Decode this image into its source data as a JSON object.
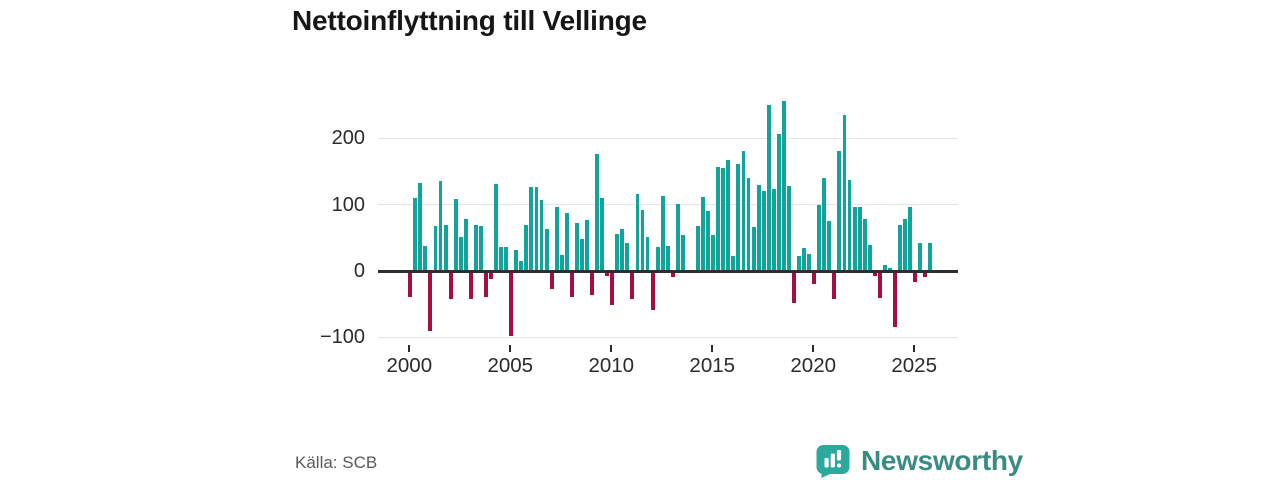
{
  "title": "Nettoinflyttning till Vellinge",
  "source": "Källa: SCB",
  "brand": {
    "name": "Newsworthy"
  },
  "chart_data": {
    "type": "bar",
    "title": "Nettoinflyttning till Vellinge",
    "xlabel": "",
    "ylabel": "",
    "frequency": "quarterly",
    "start_year": 2000,
    "values": [
      -38,
      110,
      132,
      37,
      -88,
      68,
      135,
      69,
      -40,
      108,
      51,
      78,
      -40,
      70,
      68,
      -37,
      -10,
      131,
      36,
      36,
      -97,
      31,
      15,
      69,
      126,
      127,
      107,
      64,
      -26,
      96,
      24,
      87,
      -38,
      73,
      49,
      77,
      -35,
      176,
      110,
      -5,
      -49,
      56,
      64,
      42,
      -41,
      116,
      92,
      51,
      -57,
      36,
      113,
      37,
      -7,
      101,
      55,
      2,
      0,
      68,
      111,
      90,
      54,
      157,
      155,
      168,
      22,
      161,
      181,
      140,
      67,
      129,
      121,
      251,
      123,
      206,
      256,
      128,
      -46,
      22,
      34,
      25,
      -18,
      99,
      140,
      75,
      -40,
      181,
      236,
      137,
      96,
      97,
      78,
      39,
      -5,
      -39,
      9,
      4,
      -82,
      70,
      78,
      96,
      -15,
      42,
      -8,
      42
    ],
    "x_tick_labels": [
      "2000",
      "2005",
      "2010",
      "2015",
      "2020",
      "2025"
    ],
    "y_ticks": [
      200,
      100,
      0,
      -100
    ],
    "y_tick_labels": [
      "200",
      "100",
      "0",
      "−100"
    ],
    "ylim": [
      -110,
      270
    ],
    "grid": "horizontal",
    "legend": "none",
    "colors": {
      "positive": "#10a49a",
      "negative": "#a50d45",
      "zero_axis": "#2e2e2e",
      "gridline": "#e4e4e4",
      "brand_icon": "#2ca89d",
      "brand_text": "#3a8b84"
    }
  }
}
